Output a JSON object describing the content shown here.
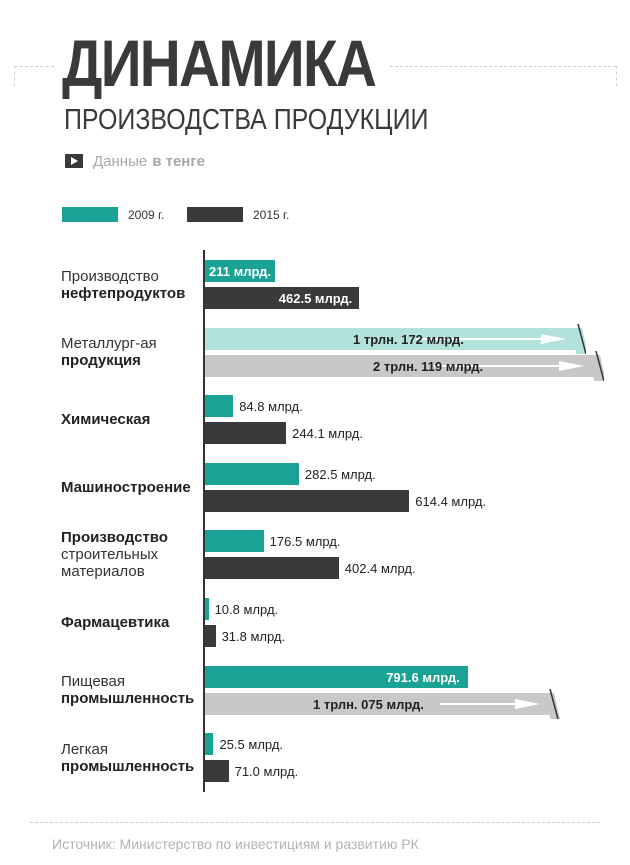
{
  "header": {
    "title": "ДИНАМИКА",
    "subtitle": "ПРОИЗВОДСТВА ПРОДУКЦИИ",
    "note_prefix": "Данные",
    "note_bold": "в тенге"
  },
  "legend": [
    {
      "label": "2009 г.",
      "color": "#1aa394"
    },
    {
      "label": "2015 г.",
      "color": "#3a3a3c"
    }
  ],
  "chart_data": {
    "type": "bar",
    "orientation": "horizontal",
    "units": "млрд. тенге",
    "categories": [
      {
        "light": "Производство",
        "bold": "нефтепродуктов"
      },
      {
        "light": "Металлург-ая",
        "bold": "продукция"
      },
      {
        "light": "",
        "bold": "Химическая"
      },
      {
        "light": "",
        "bold": "Машиностроение"
      },
      {
        "bold": "Производство",
        "light": "строительных материалов",
        "order": "bold-first"
      },
      {
        "light": "",
        "bold": "Фармацевтика"
      },
      {
        "light": "Пищевая",
        "bold": "промышленность"
      },
      {
        "light": "Легкая",
        "bold": "промышленность"
      }
    ],
    "series": [
      {
        "name": "2009 г.",
        "values": [
          211,
          1172,
          84.8,
          282.5,
          176.5,
          10.8,
          791.6,
          25.5
        ],
        "labels": [
          "211 млрд.",
          "1 трлн. 172 млрд.",
          "84.8 млрд.",
          "282.5 млрд.",
          "176.5 млрд.",
          "10.8 млрд.",
          "791.6 млрд.",
          "25.5 млрд."
        ]
      },
      {
        "name": "2015 г.",
        "values": [
          462.5,
          2119,
          244.1,
          614.4,
          402.4,
          31.8,
          1075,
          71.0
        ],
        "labels": [
          "462.5 млрд.",
          "2 трлн. 119 млрд.",
          "244.1 млрд.",
          "614.4 млрд.",
          "402.4 млрд.",
          "31.8 млрд.",
          "1 трлн. 075 млрд.",
          "71.0 млрд."
        ]
      }
    ]
  },
  "source": "Источник: Министерство по инвестициям и развитию РК"
}
